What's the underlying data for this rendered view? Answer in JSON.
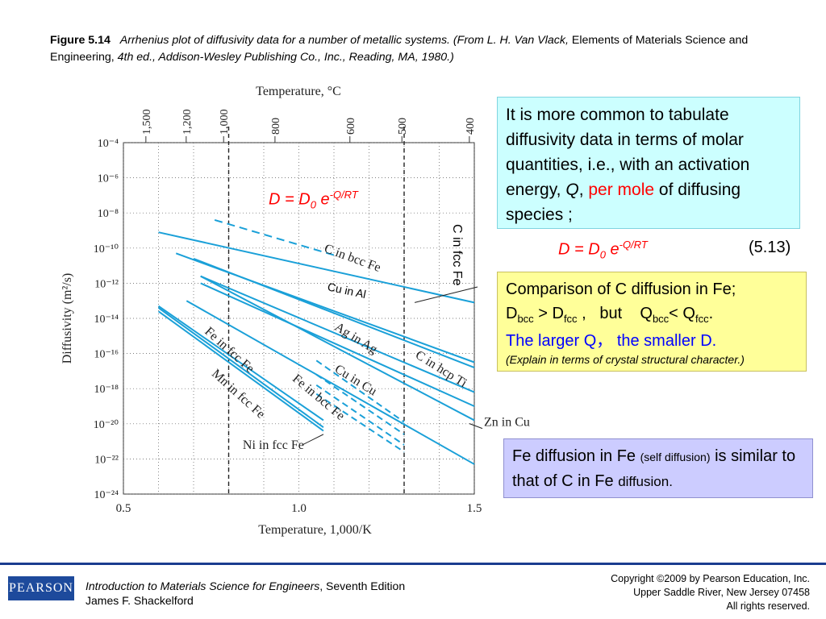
{
  "caption": {
    "figure_label": "Figure 5.14",
    "text_italic_1": "Arrhenius plot of diffusivity data for a number of metallic systems. (From L. H. Van Vlack,",
    "text_normal": "Elements of Materials Science and Engineering,",
    "text_italic_2": "4th ed., Addison-Wesley Publishing Co., Inc., Reading, MA, 1980.)"
  },
  "chart_data": {
    "type": "line",
    "xlabel": "Temperature, 1,000/K",
    "ylabel": "Diffusivity (m²/s)",
    "top_axis_label": "Temperature, °C",
    "xlim": [
      0.5,
      1.5
    ],
    "ylim_log10": [
      -24,
      -4
    ],
    "x_ticks": [
      "0.5",
      "1.0",
      "1.5"
    ],
    "y_ticks": [
      "10⁻⁴",
      "10⁻⁶",
      "10⁻⁸",
      "10⁻¹⁰",
      "10⁻¹²",
      "10⁻¹⁴",
      "10⁻¹⁶",
      "10⁻¹⁸",
      "10⁻²⁰",
      "10⁻²²",
      "10⁻²⁴"
    ],
    "top_ticks": [
      "1,500",
      "1,200",
      "1,000",
      "800",
      "600",
      "500",
      "400"
    ],
    "grid": true,
    "series": [
      {
        "name": "C in bcc Fe",
        "dashed": false,
        "points": [
          [
            0.6,
            -9.1
          ],
          [
            1.5,
            -13.1
          ]
        ]
      },
      {
        "name": "C in fcc Fe",
        "dashed": true,
        "points": [
          [
            0.76,
            -8.4
          ],
          [
            1.1,
            -10.4
          ]
        ]
      },
      {
        "name": "Cu in Al",
        "dashed": false,
        "points": [
          [
            0.65,
            -10.3
          ],
          [
            1.5,
            -16.5
          ]
        ]
      },
      {
        "name": "C in hcp Ti",
        "dashed": false,
        "points": [
          [
            0.7,
            -10.6
          ],
          [
            1.5,
            -16.8
          ]
        ]
      },
      {
        "name": "Ag in Ag",
        "dashed": false,
        "points": [
          [
            0.72,
            -11.6
          ],
          [
            1.5,
            -18.2
          ]
        ]
      },
      {
        "name": "Cu in Cu",
        "dashed": false,
        "points": [
          [
            0.72,
            -12.0
          ],
          [
            1.5,
            -19.0
          ]
        ]
      },
      {
        "name": "Zn in Cu",
        "dashed": false,
        "points": [
          [
            0.72,
            -11.6
          ],
          [
            1.5,
            -19.8
          ]
        ]
      },
      {
        "name": "Fe in bcc Fe",
        "dashed": false,
        "points": [
          [
            0.68,
            -13.0
          ],
          [
            1.5,
            -22.3
          ]
        ]
      },
      {
        "name": "Fe in fcc Fe",
        "dashed": false,
        "points": [
          [
            0.6,
            -13.3
          ],
          [
            1.07,
            -19.8
          ]
        ]
      },
      {
        "name": "Mn in fcc Fe",
        "dashed": false,
        "points": [
          [
            0.6,
            -13.4
          ],
          [
            1.07,
            -20.2
          ]
        ]
      },
      {
        "name": "Ni in fcc Fe",
        "dashed": false,
        "points": [
          [
            0.6,
            -13.6
          ],
          [
            1.07,
            -20.4
          ]
        ]
      }
    ],
    "annotations": {
      "formula": "D = D0 e-Q/RT",
      "cu_in_al": "Cu in Al",
      "c_in_fcc_fe_vertical": "C in fcc Fe"
    }
  },
  "box1": {
    "text_1": "It is more common to tabulate diffusivity data in terms of molar quantities, i.e., with an activation energy,",
    "q": "Q",
    "comma": ",",
    "per_mole": "per mole",
    "text_2": "of diffusing species ;"
  },
  "equation": {
    "number": "(5.13)"
  },
  "box2": {
    "line1": "Comparison of C diffusion in Fe;",
    "line3": "The larger Q， the smaller D.",
    "line4": "(Explain in terms of crystal structural character.)"
  },
  "box3": {
    "text_1": "Fe diffusion in Fe",
    "self": "(self diffusion)",
    "text_2": "is similar to that of C in Fe",
    "diffusion": "diffusion."
  },
  "footer": {
    "logo": "PEARSON",
    "book_title": "Introduction to Materials Science for Engineers",
    "edition": ", Seventh Edition",
    "author": "James F. Shackelford",
    "copyright_1": "Copyright ©2009 by Pearson Education, Inc.",
    "copyright_2": "Upper Saddle River, New Jersey 07458",
    "copyright_3": "All rights reserved."
  },
  "colors": {
    "line": "#1aa0d8",
    "grid": "#555555",
    "box1": "#ccffff",
    "box2": "#ffff99",
    "box3": "#ccccff",
    "footer": "#1d4a9c"
  }
}
